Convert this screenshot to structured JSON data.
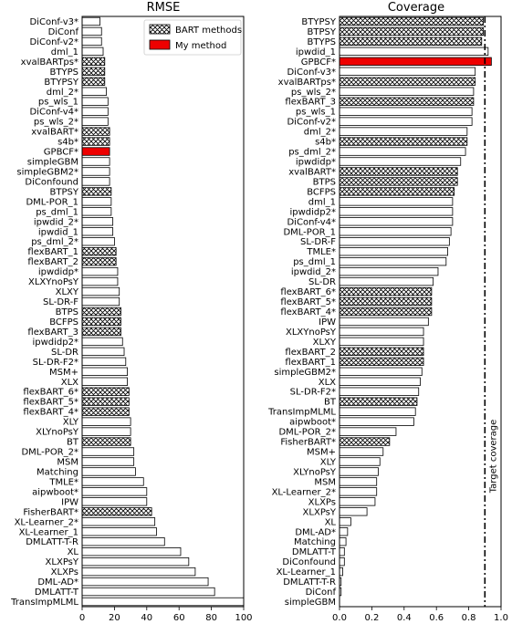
{
  "legend": {
    "bart_label": "BART methods",
    "my_label": "My method"
  },
  "colors": {
    "my_method": "#ee0000",
    "bar_edge": "#000000",
    "plain_fill": "#ffffff",
    "hatch_fill": "#ffffff"
  },
  "chart_data": [
    {
      "type": "bar",
      "orientation": "horizontal",
      "title": "RMSE",
      "xlabel": "",
      "ylabel": "",
      "xlim": [
        0,
        100
      ],
      "xticks": [
        0,
        20,
        40,
        60,
        80,
        100
      ],
      "grid": false,
      "legend_position": "top-right",
      "categories": [
        "DiConf-v3*",
        "DiConf",
        "DiConf-v2*",
        "dml_1",
        "xvalBARTps*",
        "BTYPS",
        "BTYPSY",
        "dml_2*",
        "ps_wls_1",
        "DiConf-v4*",
        "ps_wls_2*",
        "xvalBART*",
        "s4b*",
        "GPBCF*",
        "simpleGBM",
        "simpleGBM2*",
        "DiConfound",
        "BTPSY",
        "DML-POR_1",
        "ps_dml_1",
        "ipwdid_2*",
        "ipwdid_1",
        "ps_dml_2*",
        "flexBART_1",
        "flexBART_2",
        "ipwdidp*",
        "XLXYnoPsY",
        "XLXY",
        "SL-DR-F",
        "BTPS",
        "BCFPS",
        "flexBART_3",
        "ipwdidp2*",
        "SL-DR",
        "SL-DR-F2*",
        "MSM+",
        "XLX",
        "flexBART_6*",
        "flexBART_5*",
        "flexBART_4*",
        "XLY",
        "XLYnoPsY",
        "BT",
        "DML-POR_2*",
        "MSM",
        "Matching",
        "TMLE*",
        "aipwboot*",
        "IPW",
        "FisherBART*",
        "XL-Learner_2*",
        "XL-Learner_1",
        "DMLATT-T-R",
        "XL",
        "XLXPsY",
        "XLXPs",
        "DML-AD*",
        "DMLATT-T",
        "TransImpMLML"
      ],
      "values": [
        11,
        12,
        12,
        13,
        14,
        14,
        14,
        15,
        16,
        16,
        16,
        17,
        17,
        17,
        17,
        17,
        17,
        18,
        18,
        18,
        19,
        19,
        20,
        21,
        21,
        22,
        22,
        23,
        23,
        24,
        24,
        24,
        25,
        26,
        27,
        28,
        28,
        29,
        29,
        29,
        30,
        30,
        30,
        32,
        32,
        33,
        38,
        40,
        40,
        43,
        45,
        46,
        51,
        61,
        66,
        70,
        78,
        82,
        100
      ],
      "group": [
        "plain",
        "plain",
        "plain",
        "plain",
        "bart",
        "bart",
        "bart",
        "plain",
        "plain",
        "plain",
        "plain",
        "bart",
        "bart",
        "mine",
        "plain",
        "plain",
        "plain",
        "bart",
        "plain",
        "plain",
        "plain",
        "plain",
        "plain",
        "bart",
        "bart",
        "plain",
        "plain",
        "plain",
        "plain",
        "bart",
        "bart",
        "bart",
        "plain",
        "plain",
        "plain",
        "plain",
        "plain",
        "bart",
        "bart",
        "bart",
        "plain",
        "plain",
        "bart",
        "plain",
        "plain",
        "plain",
        "plain",
        "plain",
        "plain",
        "bart",
        "plain",
        "plain",
        "plain",
        "plain",
        "plain",
        "plain",
        "plain",
        "plain",
        "plain"
      ]
    },
    {
      "type": "bar",
      "orientation": "horizontal",
      "title": "Coverage",
      "xlabel": "",
      "ylabel": "",
      "xlim": [
        0,
        1.0
      ],
      "xticks": [
        0.0,
        0.2,
        0.4,
        0.6,
        0.8,
        1.0
      ],
      "grid": false,
      "reference_line": {
        "x": 0.9,
        "style": "dash-dot",
        "label": "Target coverage"
      },
      "categories": [
        "BTYPSY",
        "BTPSY",
        "BTYPS",
        "ipwdid_1",
        "GPBCF*",
        "DiConf-v3*",
        "xvalBARTps*",
        "ps_wls_2*",
        "flexBART_3",
        "ps_wls_1",
        "DiConf-v2*",
        "dml_2*",
        "s4b*",
        "ps_dml_2*",
        "ipwdidp*",
        "xvalBART*",
        "BTPS",
        "BCFPS",
        "dml_1",
        "ipwdidp2*",
        "DiConf-v4*",
        "DML-POR_1",
        "SL-DR-F",
        "TMLE*",
        "ps_dml_1",
        "ipwdid_2*",
        "SL-DR",
        "flexBART_6*",
        "flexBART_5*",
        "flexBART_4*",
        "IPW",
        "XLXYnoPsY",
        "XLXY",
        "flexBART_2",
        "flexBART_1",
        "simpleGBM2*",
        "XLX",
        "SL-DR-F2*",
        "BT",
        "TransImpMLML",
        "aipwboot*",
        "DML-POR_2*",
        "FisherBART*",
        "MSM+",
        "XLY",
        "XLYnoPsY",
        "MSM",
        "XL-Learner_2*",
        "XLXPs",
        "XLXPsY",
        "XL",
        "DML-AD*",
        "Matching",
        "DMLATT-T",
        "DiConfound",
        "XL-Learner_1",
        "DMLATT-T-R",
        "DiConf",
        "simpleGBM"
      ],
      "values": [
        0.89,
        0.89,
        0.88,
        0.92,
        0.94,
        0.84,
        0.84,
        0.83,
        0.83,
        0.82,
        0.82,
        0.79,
        0.79,
        0.78,
        0.75,
        0.73,
        0.73,
        0.71,
        0.7,
        0.7,
        0.7,
        0.69,
        0.68,
        0.67,
        0.66,
        0.61,
        0.58,
        0.57,
        0.57,
        0.57,
        0.55,
        0.52,
        0.52,
        0.52,
        0.52,
        0.51,
        0.5,
        0.49,
        0.48,
        0.47,
        0.46,
        0.35,
        0.31,
        0.27,
        0.25,
        0.24,
        0.23,
        0.23,
        0.22,
        0.17,
        0.07,
        0.05,
        0.04,
        0.03,
        0.03,
        0.02,
        0.01,
        0.01,
        0.0
      ],
      "group": [
        "bart",
        "bart",
        "bart",
        "plain",
        "mine",
        "plain",
        "bart",
        "plain",
        "bart",
        "plain",
        "plain",
        "plain",
        "bart",
        "plain",
        "plain",
        "bart",
        "bart",
        "bart",
        "plain",
        "plain",
        "plain",
        "plain",
        "plain",
        "plain",
        "plain",
        "plain",
        "plain",
        "bart",
        "bart",
        "bart",
        "plain",
        "plain",
        "plain",
        "bart",
        "bart",
        "plain",
        "plain",
        "plain",
        "bart",
        "plain",
        "plain",
        "plain",
        "bart",
        "plain",
        "plain",
        "plain",
        "plain",
        "plain",
        "plain",
        "plain",
        "plain",
        "plain",
        "plain",
        "plain",
        "plain",
        "plain",
        "plain",
        "plain",
        "plain"
      ]
    }
  ]
}
